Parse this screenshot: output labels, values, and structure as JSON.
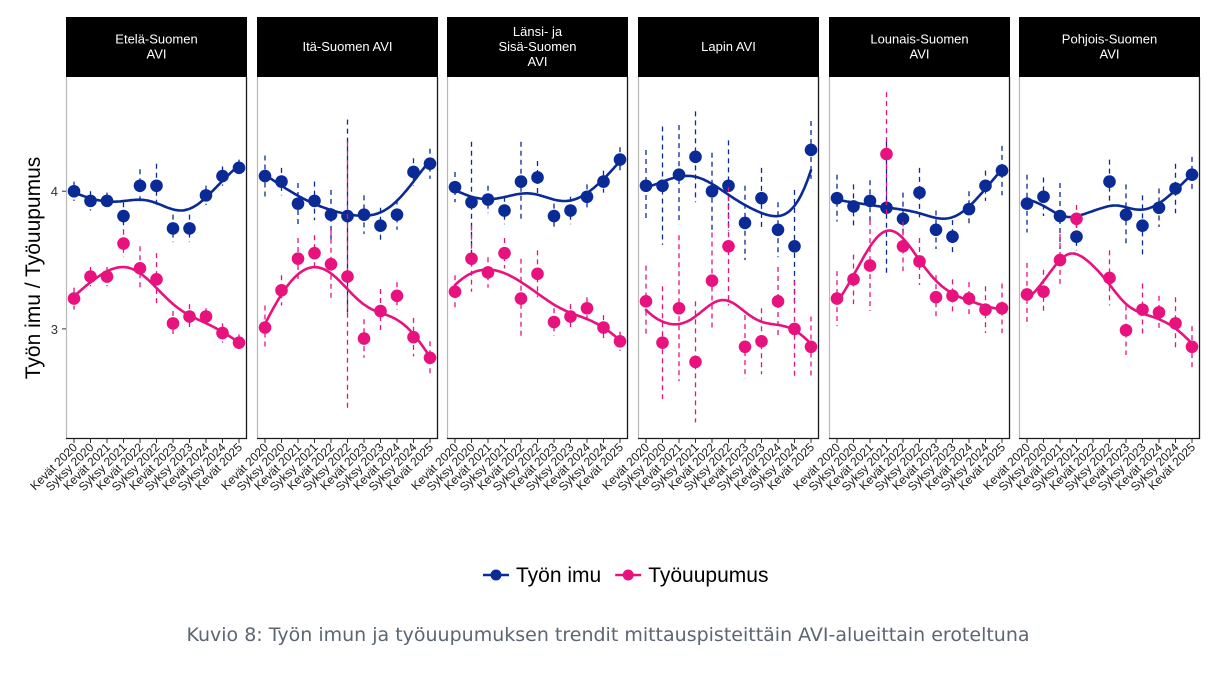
{
  "chart_data": {
    "type": "line",
    "ylabel": "Työn imu / Työuupumus",
    "xlabel": "",
    "ylim": [
      2.2,
      4.83
    ],
    "yticks": [
      3,
      4
    ],
    "grid": false,
    "legend_position": "bottom",
    "categories": [
      "Kevät 2020",
      "Syksy 2020",
      "Kevät 2021",
      "Syksy 2021",
      "Kevät 2022",
      "Syksy 2022",
      "Kevät 2023",
      "Syksy 2023",
      "Kevät 2024",
      "Syksy 2024",
      "Kevät 2025"
    ],
    "series_meta": [
      {
        "name": "Työn imu",
        "color": "#0a2a96"
      },
      {
        "name": "Työuupumus",
        "color": "#e8127f"
      }
    ],
    "panels": [
      {
        "title": "Etelä-Suomen\nAVI",
        "series": [
          {
            "name": "Työn imu",
            "values": [
              4.0,
              3.93,
              3.93,
              3.82,
              4.04,
              4.04,
              3.73,
              3.73,
              3.97,
              4.11,
              4.17
            ],
            "ci": [
              0.07,
              0.07,
              0.06,
              0.1,
              0.12,
              0.16,
              0.1,
              0.1,
              0.07,
              0.07,
              0.06
            ]
          },
          {
            "name": "Työuupumus",
            "values": [
              3.22,
              3.38,
              3.38,
              3.62,
              3.44,
              3.36,
              3.04,
              3.09,
              3.09,
              2.97,
              2.9
            ],
            "ci": [
              0.08,
              0.07,
              0.07,
              0.1,
              0.16,
              0.19,
              0.09,
              0.09,
              0.06,
              0.07,
              0.06
            ]
          }
        ]
      },
      {
        "title": "Itä-Suomen AVI",
        "series": [
          {
            "name": "Työn imu",
            "values": [
              4.11,
              4.07,
              3.91,
              3.93,
              3.83,
              3.82,
              3.83,
              3.75,
              3.83,
              4.14,
              4.2
            ],
            "ci": [
              0.15,
              0.1,
              0.15,
              0.14,
              0.18,
              0.7,
              0.14,
              0.13,
              0.11,
              0.1,
              0.11
            ]
          },
          {
            "name": "Työuupumus",
            "values": [
              3.01,
              3.28,
              3.51,
              3.55,
              3.47,
              3.38,
              2.93,
              3.13,
              3.24,
              2.94,
              2.79
            ],
            "ci": [
              0.16,
              0.11,
              0.15,
              0.13,
              0.25,
              0.98,
              0.14,
              0.16,
              0.1,
              0.14,
              0.12
            ]
          }
        ]
      },
      {
        "title": "Länsi- ja\nSisä-Suomen\nAVI",
        "series": [
          {
            "name": "Työn imu",
            "values": [
              4.03,
              3.92,
              3.94,
              3.86,
              4.07,
              4.1,
              3.82,
              3.86,
              3.96,
              4.07,
              4.23
            ],
            "ci": [
              0.11,
              0.44,
              0.1,
              0.1,
              0.29,
              0.12,
              0.09,
              0.1,
              0.09,
              0.08,
              0.09
            ]
          },
          {
            "name": "Työuupumus",
            "values": [
              3.27,
              3.51,
              3.41,
              3.55,
              3.22,
              3.4,
              3.05,
              3.09,
              3.15,
              3.01,
              2.91
            ],
            "ci": [
              0.12,
              0.24,
              0.11,
              0.11,
              0.29,
              0.17,
              0.1,
              0.09,
              0.08,
              0.09,
              0.07
            ]
          }
        ]
      },
      {
        "title": "Lapin AVI",
        "series": [
          {
            "name": "Työn imu",
            "values": [
              4.04,
              4.04,
              4.12,
              4.25,
              4.0,
              4.04,
              3.77,
              3.95,
              3.72,
              3.6,
              4.3
            ],
            "ci": [
              0.26,
              0.43,
              0.36,
              0.33,
              0.28,
              0.33,
              0.27,
              0.22,
              0.2,
              0.41,
              0.21
            ]
          },
          {
            "name": "Työuupumus",
            "values": [
              3.2,
              2.9,
              3.15,
              2.76,
              3.35,
              3.6,
              2.87,
              2.91,
              3.2,
              3.0,
              2.87
            ],
            "ci": [
              0.26,
              0.41,
              0.53,
              0.44,
              0.35,
              0.43,
              0.23,
              0.24,
              0.25,
              0.35,
              0.22
            ]
          }
        ]
      },
      {
        "title": "Lounais-Suomen\nAVI",
        "series": [
          {
            "name": "Työn imu",
            "values": [
              3.95,
              3.89,
              3.93,
              3.88,
              3.8,
              3.99,
              3.72,
              3.67,
              3.87,
              4.04,
              4.15
            ],
            "ci": [
              0.17,
              0.16,
              0.15,
              0.48,
              0.19,
              0.18,
              0.14,
              0.12,
              0.13,
              0.11,
              0.18
            ]
          },
          {
            "name": "Työuupumus",
            "values": [
              3.22,
              3.36,
              3.46,
              4.27,
              3.6,
              3.49,
              3.23,
              3.24,
              3.22,
              3.14,
              3.15
            ],
            "ci": [
              0.2,
              0.18,
              0.33,
              0.45,
              0.18,
              0.17,
              0.16,
              0.12,
              0.12,
              0.17,
              0.18
            ]
          }
        ]
      },
      {
        "title": "Pohjois-Suomen\nAVI",
        "series": [
          {
            "name": "Työn imu",
            "values": [
              3.91,
              3.96,
              3.82,
              3.67,
              null,
              4.07,
              3.83,
              3.75,
              3.88,
              4.02,
              4.12
            ],
            "ci": [
              0.21,
              0.14,
              0.24,
              0.1,
              null,
              0.16,
              0.22,
              0.22,
              0.14,
              0.18,
              0.13
            ]
          },
          {
            "name": "Työuupumus",
            "values": [
              3.25,
              3.27,
              3.5,
              3.8,
              null,
              3.37,
              2.99,
              3.14,
              3.12,
              3.04,
              2.87
            ],
            "ci": [
              0.23,
              0.16,
              0.19,
              0.1,
              null,
              0.2,
              0.18,
              0.19,
              0.12,
              0.19,
              0.15
            ]
          }
        ]
      }
    ]
  },
  "legend": {
    "items": [
      {
        "label": "Työn imu",
        "color": "#0a2a96"
      },
      {
        "label": "Työuupumus",
        "color": "#e8127f"
      }
    ]
  },
  "caption": "Kuvio 8: Työn imun ja työuupumuksen trendit mittauspisteittäin AVI-alueittain eroteltuna"
}
